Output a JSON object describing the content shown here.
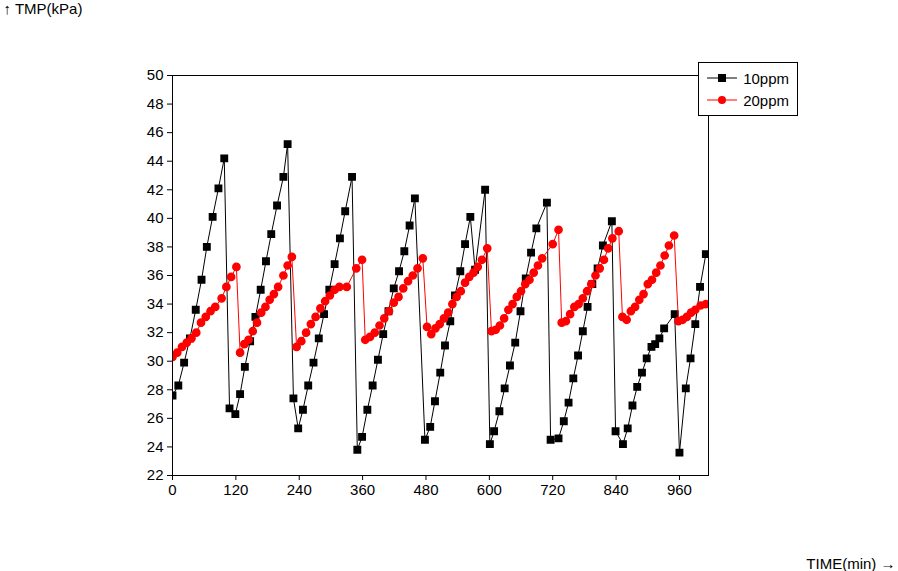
{
  "chart_data": {
    "type": "line",
    "x_label": "TIME(min)",
    "y_label": "TMP(kPa)",
    "xlim": [
      0,
      1015
    ],
    "xticks": [
      0,
      120,
      240,
      360,
      480,
      600,
      720,
      840,
      960
    ],
    "ylim": [
      22,
      50
    ],
    "yticks": [
      22,
      24,
      26,
      28,
      30,
      32,
      34,
      36,
      38,
      40,
      42,
      44,
      46,
      48,
      50
    ],
    "legend": "top-right",
    "series": [
      {
        "name": "10ppm",
        "color": "#000000",
        "marker": "square",
        "x": [
          0,
          11,
          22,
          33,
          44,
          55,
          65,
          76,
          87,
          98,
          108,
          119,
          128,
          137,
          147,
          157,
          167,
          177,
          187,
          198,
          210,
          218,
          229,
          238,
          247,
          257,
          267,
          277,
          287,
          297,
          307,
          317,
          327,
          340,
          350,
          359,
          369,
          379,
          389,
          399,
          409,
          419,
          429,
          439,
          449,
          459,
          478,
          488,
          497,
          507,
          516,
          526,
          535,
          545,
          554,
          564,
          573,
          592,
          601,
          609,
          619,
          629,
          639,
          649,
          659,
          669,
          679,
          689,
          709,
          716,
          731,
          741,
          750,
          759,
          768,
          777,
          786,
          795,
          805,
          815,
          832,
          839,
          853,
          862,
          871,
          880,
          889,
          898,
          907,
          914,
          922,
          931,
          951,
          960,
          972,
          981,
          990,
          999,
          1010
        ],
        "values": [
          27.6,
          28.3,
          29.9,
          31.6,
          33.6,
          35.7,
          38.0,
          40.1,
          42.1,
          44.2,
          26.7,
          26.3,
          27.7,
          29.6,
          31.4,
          33.1,
          35.0,
          37.0,
          38.9,
          40.9,
          42.9,
          45.2,
          27.4,
          25.3,
          26.6,
          28.3,
          29.9,
          31.6,
          33.3,
          35.0,
          36.8,
          38.6,
          40.5,
          42.9,
          23.8,
          24.7,
          26.6,
          28.3,
          30.1,
          31.9,
          33.5,
          35.1,
          36.3,
          37.7,
          39.5,
          41.4,
          24.5,
          25.4,
          27.2,
          29.2,
          31.1,
          32.8,
          34.6,
          36.3,
          38.2,
          40.1,
          36.4,
          42.0,
          24.2,
          25.1,
          26.5,
          28.1,
          29.7,
          31.3,
          33.5,
          35.8,
          37.6,
          39.3,
          41.1,
          24.5,
          24.6,
          25.8,
          27.1,
          28.8,
          30.4,
          32.1,
          33.8,
          35.4,
          36.5,
          38.1,
          39.8,
          25.1,
          24.2,
          25.3,
          26.9,
          28.2,
          29.2,
          30.2,
          31.0,
          31.2,
          31.6,
          32.3,
          33.3,
          23.6,
          28.1,
          30.2,
          32.6,
          35.2,
          37.5
        ]
      },
      {
        "name": "20ppm",
        "color": "#ff0000",
        "marker": "circle",
        "x": [
          0,
          9,
          18,
          27,
          36,
          45,
          54,
          63,
          72,
          81,
          93,
          102,
          111,
          121,
          128,
          136,
          144,
          152,
          160,
          168,
          176,
          184,
          192,
          200,
          210,
          218,
          226,
          235,
          244,
          253,
          262,
          271,
          280,
          289,
          298,
          307,
          316,
          330,
          348,
          359,
          365,
          374,
          383,
          392,
          401,
          410,
          419,
          428,
          437,
          446,
          455,
          464,
          474,
          482,
          490,
          498,
          506,
          514,
          522,
          530,
          538,
          546,
          554,
          562,
          570,
          578,
          586,
          596,
          604,
          612,
          620,
          628,
          636,
          644,
          652,
          660,
          668,
          676,
          684,
          692,
          700,
          720,
          731,
          737,
          745,
          753,
          761,
          769,
          777,
          785,
          793,
          801,
          809,
          817,
          825,
          833,
          845,
          852,
          860,
          868,
          876,
          884,
          892,
          900,
          908,
          916,
          924,
          932,
          940,
          950,
          958,
          966,
          974,
          982,
          990,
          1000,
          1010
        ],
        "values": [
          30.3,
          30.6,
          31.0,
          31.3,
          31.6,
          32.0,
          32.7,
          33.1,
          33.5,
          33.8,
          34.4,
          35.2,
          35.9,
          36.6,
          30.6,
          31.2,
          31.5,
          32.1,
          32.7,
          33.4,
          33.8,
          34.3,
          34.7,
          35.2,
          36.0,
          36.7,
          37.3,
          31.0,
          31.4,
          32.0,
          32.6,
          33.1,
          33.7,
          34.2,
          34.6,
          35.0,
          35.2,
          35.2,
          36.5,
          37.1,
          31.5,
          31.7,
          32.0,
          32.5,
          33.0,
          33.5,
          34.1,
          34.5,
          35.1,
          35.6,
          36.0,
          36.5,
          37.2,
          32.4,
          31.9,
          32.3,
          32.6,
          33.0,
          33.4,
          34.0,
          34.5,
          34.9,
          35.5,
          35.9,
          36.2,
          36.6,
          37.1,
          37.9,
          32.1,
          32.2,
          32.5,
          33.0,
          33.6,
          34.0,
          34.5,
          34.9,
          35.4,
          35.7,
          36.2,
          36.7,
          37.2,
          38.2,
          39.2,
          32.7,
          32.8,
          33.3,
          33.8,
          34.0,
          34.4,
          34.9,
          35.4,
          36.0,
          36.5,
          37.1,
          37.9,
          38.6,
          39.1,
          33.1,
          32.9,
          33.5,
          33.8,
          34.3,
          34.7,
          35.4,
          35.7,
          36.2,
          36.7,
          37.4,
          38.1,
          38.8,
          32.8,
          32.9,
          33.1,
          33.4,
          33.6,
          33.9,
          34.0
        ]
      }
    ]
  }
}
